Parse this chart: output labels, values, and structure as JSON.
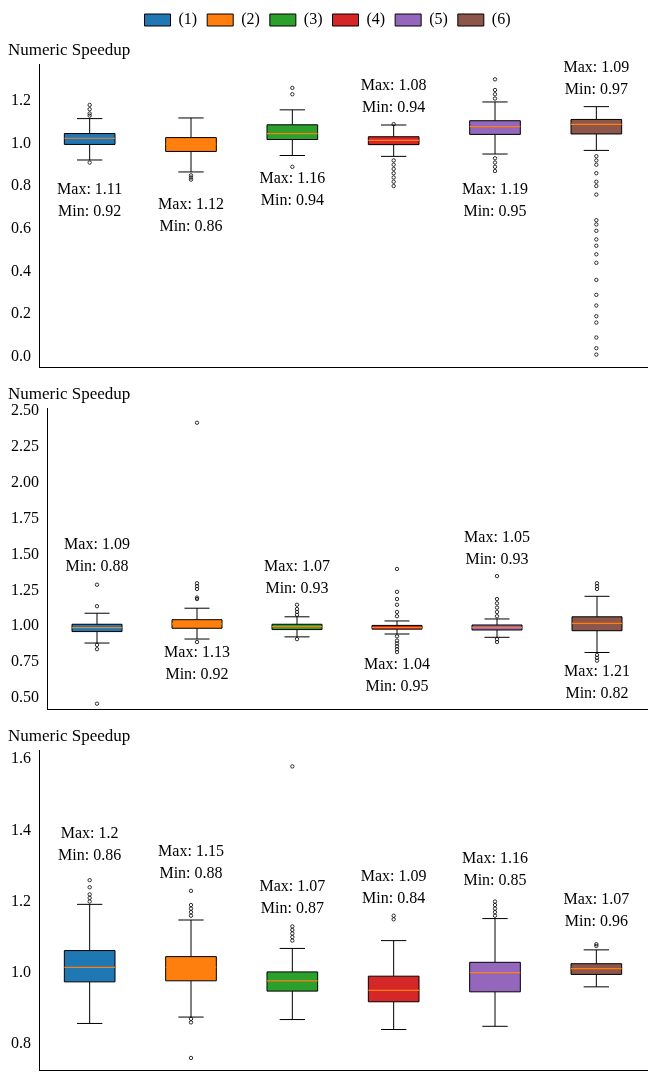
{
  "chart_data": [
    {
      "type": "box",
      "title": "Numeric Speedup",
      "categories": [
        null,
        null,
        null,
        null,
        null,
        null
      ],
      "legend": "top",
      "tick_labels": "y",
      "grid": false,
      "marker": "circle",
      "ylim": [
        -0.05,
        1.37
      ],
      "yticks": [
        {
          "value": 0,
          "label": "0.0"
        },
        0.2,
        0.4,
        0.6,
        0.8,
        {
          "value": 1,
          "label": "1.0"
        },
        1.2
      ],
      "series": [
        {
          "name": "(1)",
          "color": "#1f77b4",
          "boxes": [
            {
              "low": 0.922,
              "q1": 0.995,
              "median": 1.024,
              "q3": 1.046,
              "high": 1.116,
              "outliers": [
                1.18,
                1.16,
                1.14,
                1.13,
                0.91
              ]
            },
            null,
            null,
            null,
            null,
            null
          ]
        },
        {
          "name": "(2)",
          "color": "#ff7f0e",
          "boxes": [
            null,
            {
              "low": 0.866,
              "q1": 0.962,
              "median": 0.997,
              "q3": 1.027,
              "high": 1.119,
              "outliers": [
                0.85,
                0.84,
                0.83
              ]
            },
            null,
            null,
            null,
            null
          ]
        },
        {
          "name": "(3)",
          "color": "#2ca02c",
          "boxes": [
            null,
            null,
            {
              "low": 0.943,
              "q1": 1.018,
              "median": 1.046,
              "q3": 1.087,
              "high": 1.157,
              "outliers": [
                1.26,
                1.23,
                0.89
              ]
            },
            null,
            null,
            null
          ]
        },
        {
          "name": "(4)",
          "color": "#d62728",
          "boxes": [
            null,
            null,
            null,
            {
              "low": 0.939,
              "q1": 0.994,
              "median": 1.014,
              "q3": 1.031,
              "high": 1.086,
              "outliers": [
                1.09,
                0.92,
                0.9,
                0.88,
                0.86,
                0.84,
                0.82,
                0.8
              ]
            },
            null,
            null
          ]
        },
        {
          "name": "(5)",
          "color": "#9467bd",
          "boxes": [
            null,
            null,
            null,
            null,
            {
              "low": 0.95,
              "q1": 1.042,
              "median": 1.078,
              "q3": 1.106,
              "high": 1.194,
              "outliers": [
                1.3,
                1.25,
                1.23,
                1.21,
                0.93,
                0.91,
                0.89,
                0.87
              ]
            },
            null
          ]
        },
        {
          "name": "(6)",
          "color": "#8c564b",
          "boxes": [
            null,
            null,
            null,
            null,
            null,
            {
              "low": 0.967,
              "q1": 1.044,
              "median": 1.089,
              "q3": 1.112,
              "high": 1.172,
              "outliers": [
                0.94,
                0.92,
                0.9,
                0.86,
                0.82,
                0.8,
                0.76,
                0.64,
                0.62,
                0.59,
                0.55,
                0.52,
                0.48,
                0.44,
                0.36,
                0.29,
                0.24,
                0.19,
                0.16,
                0.09,
                0.04,
                0.01
              ]
            }
          ]
        }
      ],
      "annotations": [
        "Max: 1.11\nMin: 0.92",
        "Max: 1.12\nMin: 0.86",
        "Max: 1.16\nMin: 0.94",
        "Max: 1.08\nMin: 0.94",
        "Max: 1.19\nMin: 0.95",
        "Max: 1.09\nMin: 0.97"
      ]
    },
    {
      "type": "box",
      "title": "Numeric Speedup",
      "categories": [
        null,
        null,
        null,
        null,
        null,
        null
      ],
      "tick_labels": "y",
      "grid": false,
      "marker": "circle",
      "ylim": [
        0.42,
        2.52
      ],
      "yticks": [
        {
          "value": 0.5,
          "label": "0.50"
        },
        0.75,
        {
          "value": 1,
          "label": "1.00"
        },
        1.25,
        {
          "value": 1.5,
          "label": "1.50"
        },
        1.75,
        {
          "value": 2,
          "label": "2.00"
        },
        2.25,
        {
          "value": 2.5,
          "label": "2.50"
        }
      ],
      "series": [
        {
          "color": "#1f77b4",
          "boxes": [
            {
              "low": 0.883,
              "q1": 0.963,
              "median": 0.991,
              "q3": 1.014,
              "high": 1.091,
              "outliers": [
                1.29,
                1.14,
                0.87,
                0.84,
                0.46
              ]
            },
            null,
            null,
            null,
            null,
            null
          ]
        },
        {
          "color": "#ff7f0e",
          "boxes": [
            null,
            {
              "low": 0.911,
              "q1": 0.986,
              "median": 1.017,
              "q3": 1.046,
              "high": 1.126,
              "outliers": [
                2.42,
                1.3,
                1.28,
                1.26,
                1.2,
                1.19,
                0.89
              ]
            },
            null,
            null,
            null,
            null
          ]
        },
        {
          "color": "#2ca02c",
          "boxes": [
            null,
            null,
            {
              "low": 0.926,
              "q1": 0.977,
              "median": 0.997,
              "q3": 1.014,
              "high": 1.066,
              "outliers": [
                1.15,
                1.12,
                1.1,
                1.08,
                0.91
              ]
            },
            null,
            null,
            null
          ]
        },
        {
          "color": "#d62728",
          "boxes": [
            null,
            null,
            null,
            {
              "low": 0.946,
              "q1": 0.98,
              "median": 0.991,
              "q3": 1.006,
              "high": 1.037,
              "outliers": [
                1.4,
                1.24,
                1.19,
                1.15,
                1.1,
                1.07,
                0.93,
                0.9,
                0.88,
                0.86,
                0.84,
                0.82
              ]
            },
            null,
            null
          ]
        },
        {
          "color": "#9467bd",
          "boxes": [
            null,
            null,
            null,
            null,
            {
              "low": 0.923,
              "q1": 0.974,
              "median": 0.991,
              "q3": 1.009,
              "high": 1.051,
              "outliers": [
                1.35,
                1.19,
                1.16,
                1.13,
                1.1,
                1.07,
                0.91,
                0.89
              ]
            },
            null
          ]
        },
        {
          "color": "#8c564b",
          "boxes": [
            null,
            null,
            null,
            null,
            null,
            {
              "low": 0.817,
              "q1": 0.969,
              "median": 1.02,
              "q3": 1.066,
              "high": 1.209,
              "outliers": [
                1.3,
                1.28,
                1.26,
                0.8,
                0.78,
                0.76
              ]
            }
          ]
        }
      ],
      "annotations": [
        "Max: 1.09\nMin: 0.88",
        "Max: 1.13\nMin: 0.92",
        "Max: 1.07\nMin: 0.93",
        "Max: 1.04\nMin: 0.95",
        "Max: 1.05\nMin: 0.93",
        "Max: 1.21\nMin: 0.82"
      ]
    },
    {
      "type": "box",
      "title": "Numeric Speedup",
      "categories": [
        null,
        null,
        null,
        null,
        null,
        null
      ],
      "tick_labels": "y",
      "grid": false,
      "marker": "circle",
      "ylim": [
        0.725,
        1.625
      ],
      "yticks": [
        0.8,
        {
          "value": 1,
          "label": "1.0"
        },
        1.2,
        1.4,
        1.6
      ],
      "series": [
        {
          "color": "#1f77b4",
          "boxes": [
            {
              "low": 0.857,
              "q1": 0.974,
              "median": 1.015,
              "q3": 1.062,
              "high": 1.192,
              "outliers": [
                1.26,
                1.24,
                1.22,
                1.21,
                1.2
              ]
            },
            null,
            null,
            null,
            null,
            null
          ]
        },
        {
          "color": "#ff7f0e",
          "boxes": [
            null,
            {
              "low": 0.875,
              "q1": 0.977,
              "median": 1.015,
              "q3": 1.045,
              "high": 1.148,
              "outliers": [
                1.23,
                1.19,
                1.18,
                1.17,
                1.16,
                0.87,
                0.86,
                0.76
              ]
            },
            null,
            null,
            null,
            null
          ]
        },
        {
          "color": "#2ca02c",
          "boxes": [
            null,
            null,
            {
              "low": 0.868,
              "q1": 0.948,
              "median": 0.977,
              "q3": 1.002,
              "high": 1.068,
              "outliers": [
                1.58,
                1.13,
                1.12,
                1.11,
                1.1,
                1.09
              ]
            },
            null,
            null,
            null
          ]
        },
        {
          "color": "#d62728",
          "boxes": [
            null,
            null,
            null,
            {
              "low": 0.84,
              "q1": 0.918,
              "median": 0.95,
              "q3": 0.99,
              "high": 1.09,
              "outliers": [
                1.16,
                1.15
              ]
            },
            null,
            null
          ]
        },
        {
          "color": "#9467bd",
          "boxes": [
            null,
            null,
            null,
            null,
            {
              "low": 0.849,
              "q1": 0.946,
              "median": 1.0,
              "q3": 1.029,
              "high": 1.152,
              "outliers": [
                1.2,
                1.19,
                1.18,
                1.17,
                1.16
              ]
            },
            null
          ]
        },
        {
          "color": "#8c564b",
          "boxes": [
            null,
            null,
            null,
            null,
            null,
            {
              "low": 0.96,
              "q1": 0.995,
              "median": 1.011,
              "q3": 1.025,
              "high": 1.064,
              "outliers": [
                1.08,
                1.075
              ]
            }
          ]
        }
      ],
      "annotations": [
        "Max: 1.2\nMin: 0.86",
        "Max: 1.15\nMin: 0.88",
        "Max: 1.07\nMin: 0.87",
        "Max: 1.09\nMin: 0.84",
        "Max: 1.16\nMin: 0.85",
        "Max: 1.07\nMin: 0.96"
      ]
    }
  ]
}
